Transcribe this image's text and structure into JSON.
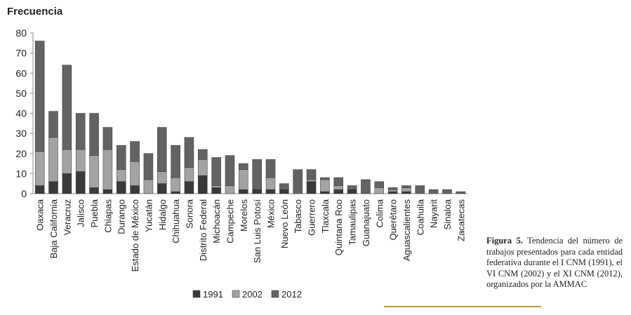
{
  "chart_data": {
    "type": "stacked_bar",
    "y_label": "Frecuencia",
    "categories": [
      "Oaxaca",
      "Baja California",
      "Veracruz",
      "Jalisco",
      "Puebla",
      "Chiapas",
      "Durango",
      "Estado de México",
      "Yucatán",
      "Hidalgo",
      "Chihuahua",
      "Sonora",
      "Distrito Federal",
      "Michoacán",
      "Campeche",
      "Morelos",
      "San Luis Potosí",
      "México",
      "Nuevo León",
      "Tabasco",
      "Guerrero",
      "Tlaxcala",
      "Quintana Roo",
      "Tamaulipas",
      "Guanajuato",
      "Colima",
      "Querétaro",
      "Aguascalientes",
      "Coahuila",
      "Nayarit",
      "Sinaloa",
      "Zacatecas"
    ],
    "series": [
      {
        "name": "1991",
        "color": "#3a3a3a",
        "values": [
          4,
          6,
          10,
          11,
          3,
          2,
          6,
          4,
          0,
          5,
          1,
          6,
          9,
          3,
          0,
          2,
          2,
          2,
          2,
          0,
          6,
          1,
          2,
          2,
          0,
          0,
          1,
          1,
          0,
          0,
          0,
          0
        ]
      },
      {
        "name": "2002",
        "color": "#a3a3a3",
        "values": [
          17,
          22,
          12,
          11,
          16,
          20,
          6,
          12,
          7,
          6,
          7,
          7,
          8,
          1,
          4,
          10,
          0,
          6,
          0,
          0,
          1,
          6,
          2,
          0,
          0,
          3,
          1,
          2,
          0,
          0,
          0,
          0
        ]
      },
      {
        "name": "2012",
        "color": "#636363",
        "values": [
          55,
          13,
          42,
          18,
          21,
          11,
          12,
          10,
          13,
          22,
          16,
          15,
          5,
          14,
          15,
          3,
          15,
          9,
          3,
          12,
          5,
          1,
          4,
          2,
          7,
          3,
          1,
          1,
          4,
          2,
          2,
          1
        ]
      }
    ],
    "ylim": [
      0,
      80
    ],
    "yticks": [
      0,
      10,
      20,
      30,
      40,
      50,
      60,
      70,
      80
    ],
    "grid": false,
    "legend": "bottom",
    "caption_label": "Figura 5.",
    "caption": "Tendencia del número de trabajos presentados para cada entidad federativa durante el I CNM (1991), el VI CNM (2002) y el XI CNM (2012), organizados por la AMMAC"
  }
}
